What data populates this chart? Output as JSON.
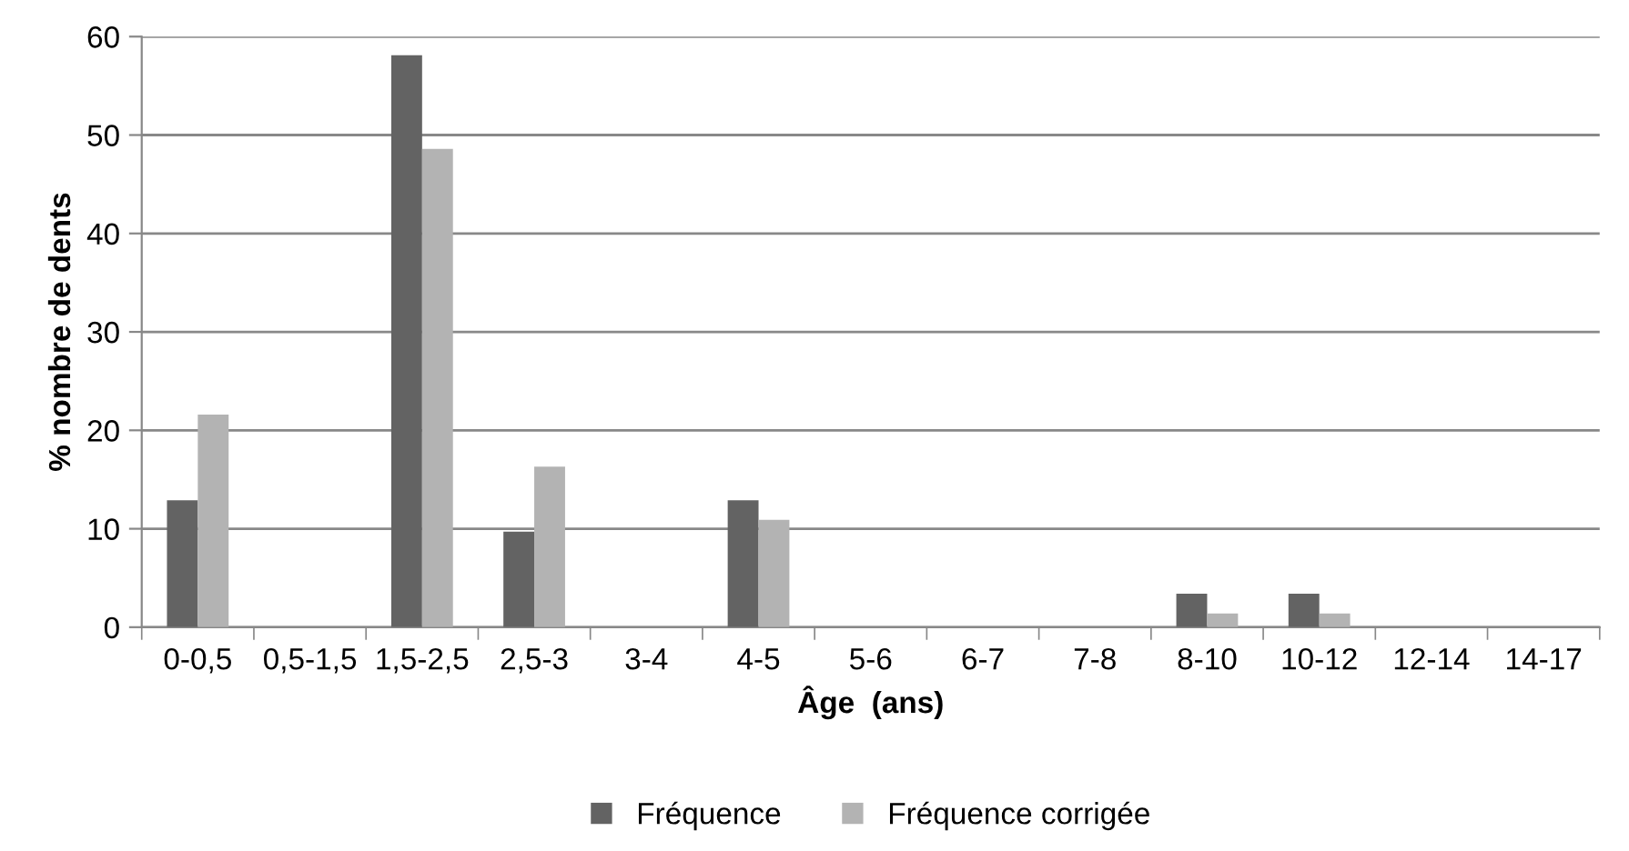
{
  "chart_data": {
    "type": "bar",
    "xlabel": "Âge  (ans)",
    "ylabel": "% nombre de dents",
    "categories": [
      "0-0,5",
      "0,5-1,5",
      "1,5-2,5",
      "2,5-3",
      "3-4",
      "4-5",
      "5-6",
      "6-7",
      "7-8",
      "8-10",
      "10-12",
      "12-14",
      "14-17"
    ],
    "series": [
      {
        "name": "Fréquence",
        "color": "#636363",
        "values": [
          12.9,
          0,
          58.1,
          9.7,
          0,
          12.9,
          0,
          0,
          0,
          3.4,
          3.4,
          0,
          0
        ]
      },
      {
        "name": "Fréquence corrigée",
        "color": "#b3b3b3",
        "values": [
          21.6,
          0,
          48.6,
          16.3,
          0,
          10.9,
          0,
          0,
          0,
          1.4,
          1.4,
          0,
          0
        ]
      }
    ],
    "ylim": [
      0,
      60
    ],
    "yticks": [
      0,
      10,
      20,
      30,
      40,
      50,
      60
    ],
    "grid": "y",
    "legend": "bottom"
  }
}
